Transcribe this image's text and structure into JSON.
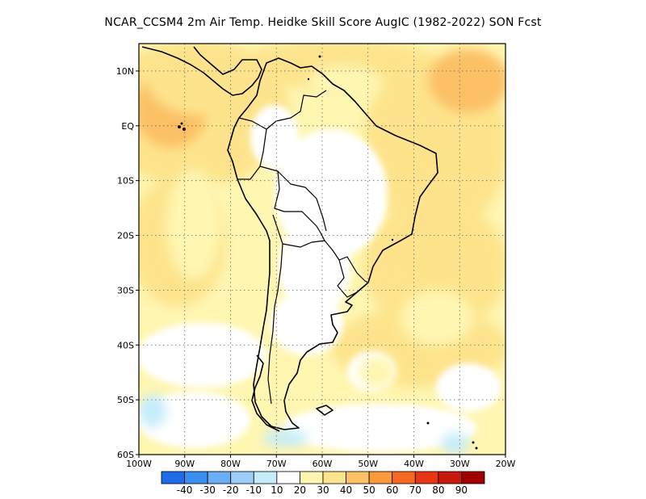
{
  "title": "NCAR_CCSM4  2m Air Temp. Heidke Skill Score AugIC (1982-2022) SON Fcst",
  "map": {
    "lon_range": [
      -100,
      -20
    ],
    "lat_range": [
      -60,
      15
    ],
    "lat_ticks": [
      {
        "lat": 10,
        "label": "10N"
      },
      {
        "lat": 0,
        "label": "EQ"
      },
      {
        "lat": -10,
        "label": "10S"
      },
      {
        "lat": -20,
        "label": "20S"
      },
      {
        "lat": -30,
        "label": "30S"
      },
      {
        "lat": -40,
        "label": "40S"
      },
      {
        "lat": -50,
        "label": "50S"
      },
      {
        "lat": -60,
        "label": "60S"
      }
    ],
    "lon_ticks": [
      {
        "lon": -100,
        "label": "100W"
      },
      {
        "lon": -90,
        "label": "90W"
      },
      {
        "lon": -80,
        "label": "80W"
      },
      {
        "lon": -70,
        "label": "70W"
      },
      {
        "lon": -60,
        "label": "60W"
      },
      {
        "lon": -50,
        "label": "50W"
      },
      {
        "lon": -40,
        "label": "40W"
      },
      {
        "lon": -30,
        "label": "30W"
      },
      {
        "lon": -20,
        "label": "20W"
      }
    ],
    "grid": "dotted",
    "field_regions": [
      {
        "level": 40,
        "lon": -93,
        "lat": 3,
        "rx": 8,
        "ry": 7
      },
      {
        "level": 30,
        "lon": -86,
        "lat": 8,
        "rx": 12,
        "ry": 6
      },
      {
        "level": 30,
        "lon": -42,
        "lat": 1,
        "rx": 7,
        "ry": 4
      },
      {
        "level": 30,
        "lon": -38,
        "lat": -10,
        "rx": 4,
        "ry": 6
      },
      {
        "level": 30,
        "lon": -45,
        "lat": -27,
        "rx": 4,
        "ry": 4
      },
      {
        "level": 20,
        "lon": -35,
        "lat": -35,
        "rx": 8,
        "ry": 5
      },
      {
        "level": 20,
        "lon": -55,
        "lat": 8,
        "rx": 8,
        "ry": 3
      },
      {
        "level": 20,
        "lon": -88,
        "lat": -18,
        "rx": 6,
        "ry": 10
      },
      {
        "level": 20,
        "lon": -48,
        "lat": -45,
        "rx": 4,
        "ry": 3
      },
      {
        "level": -10,
        "lon": -97,
        "lat": -52,
        "rx": 3,
        "ry": 3
      },
      {
        "level": -10,
        "lon": -68,
        "lat": -57,
        "rx": 5,
        "ry": 1.5
      },
      {
        "level": -10,
        "lon": -31,
        "lat": -58,
        "rx": 3,
        "ry": 2
      }
    ]
  },
  "colorbar": {
    "levels": [
      -40,
      -30,
      -20,
      -10,
      10,
      20,
      30,
      40,
      50,
      60,
      70,
      80,
      90
    ],
    "labels": [
      "-40",
      "-30",
      "-20",
      "-10",
      "10",
      "20",
      "30",
      "40",
      "50",
      "60",
      "70",
      "80",
      "90"
    ],
    "colors": [
      "#1e6ce8",
      "#3a8ef0",
      "#6aaef5",
      "#9ccef9",
      "#c4ecfb",
      "#ffffff",
      "#fff6b2",
      "#fde48c",
      "#fcc065",
      "#fa9a3c",
      "#f56a20",
      "#e83514",
      "#c81a0c",
      "#a00000"
    ]
  }
}
